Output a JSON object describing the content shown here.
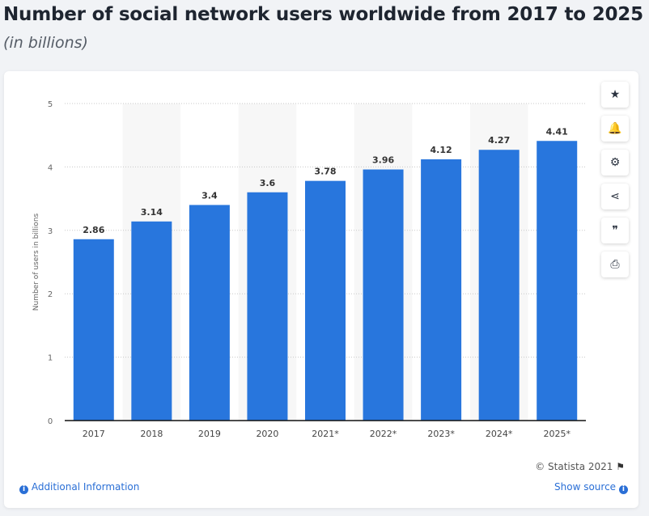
{
  "header": {
    "title": "Number of social network users worldwide from 2017 to 2025",
    "subtitle": "(in billions)"
  },
  "chart_data": {
    "type": "bar",
    "categories": [
      "2017",
      "2018",
      "2019",
      "2020",
      "2021*",
      "2022*",
      "2023*",
      "2024*",
      "2025*"
    ],
    "values": [
      2.86,
      3.14,
      3.4,
      3.6,
      3.78,
      3.96,
      4.12,
      4.27,
      4.41
    ],
    "value_labels": [
      "2.86",
      "3.14",
      "3.4",
      "3.6",
      "3.78",
      "3.96",
      "4.12",
      "4.27",
      "4.41"
    ],
    "ylabel": "Number of users in billions",
    "xlabel": "",
    "ylim": [
      0,
      5
    ],
    "yticks": [
      0,
      1,
      2,
      3,
      4,
      5
    ],
    "grid": true,
    "bar_color": "#2876dd"
  },
  "toolbar": {
    "icons": [
      "star-icon",
      "bell-icon",
      "gear-icon",
      "share-icon",
      "quote-icon",
      "print-icon"
    ],
    "glyphs": [
      "★",
      "🔔",
      "⚙",
      "⋖",
      "❞",
      "⎙"
    ]
  },
  "footer": {
    "credit": "© Statista 2021",
    "additional_info": "Additional Information",
    "show_source": "Show source",
    "info_glyph": "i"
  }
}
